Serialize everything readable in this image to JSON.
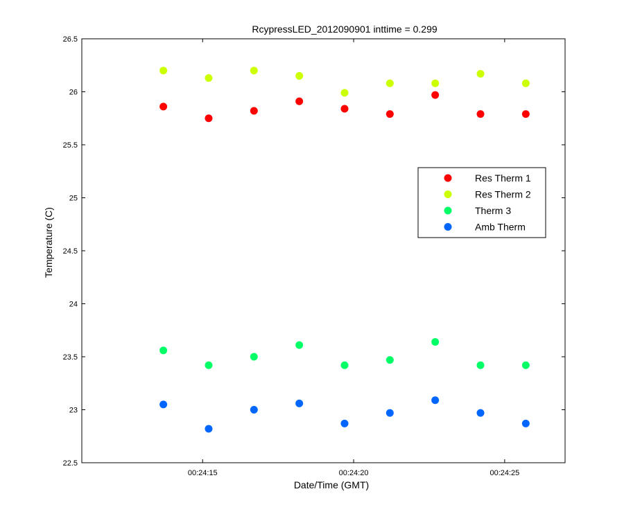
{
  "chart_data": {
    "type": "scatter",
    "title": "RcypressLED_2012090901 inttime = 0.299",
    "xlabel": "Date/Time (GMT)",
    "ylabel": "Temperature (C)",
    "xlim": [
      "00:24:11",
      "00:24:27"
    ],
    "ylim": [
      22.5,
      26.5
    ],
    "xticks": [
      {
        "t": "00:24:15",
        "label": "00:24:15"
      },
      {
        "t": "00:24:20",
        "label": "00:24:20"
      },
      {
        "t": "00:24:25",
        "label": "00:24:25"
      }
    ],
    "yticks": [
      "22.5",
      "23",
      "23.5",
      "24",
      "24.5",
      "25",
      "25.5",
      "26",
      "26.5"
    ],
    "grid": false,
    "legend_position": "right",
    "x": [
      "00:24:13.7",
      "00:24:15.2",
      "00:24:16.7",
      "00:24:18.2",
      "00:24:19.7",
      "00:24:21.2",
      "00:24:22.7",
      "00:24:24.2",
      "00:24:25.7"
    ],
    "series": [
      {
        "name": "Res Therm 1",
        "color": "#ff0000",
        "values": [
          25.86,
          25.75,
          25.82,
          25.91,
          25.84,
          25.79,
          25.97,
          25.79,
          25.79
        ]
      },
      {
        "name": "Res Therm 2",
        "color": "#ccff00",
        "values": [
          26.2,
          26.13,
          26.2,
          26.15,
          25.99,
          26.08,
          26.08,
          26.17,
          26.08
        ]
      },
      {
        "name": "Therm 3",
        "color": "#00ff66",
        "values": [
          23.56,
          23.42,
          23.5,
          23.61,
          23.42,
          23.47,
          23.64,
          23.42,
          23.42
        ]
      },
      {
        "name": "Amb Therm",
        "color": "#0066ff",
        "values": [
          23.05,
          22.82,
          23.0,
          23.06,
          22.87,
          22.97,
          23.09,
          22.97,
          22.87
        ]
      }
    ]
  }
}
